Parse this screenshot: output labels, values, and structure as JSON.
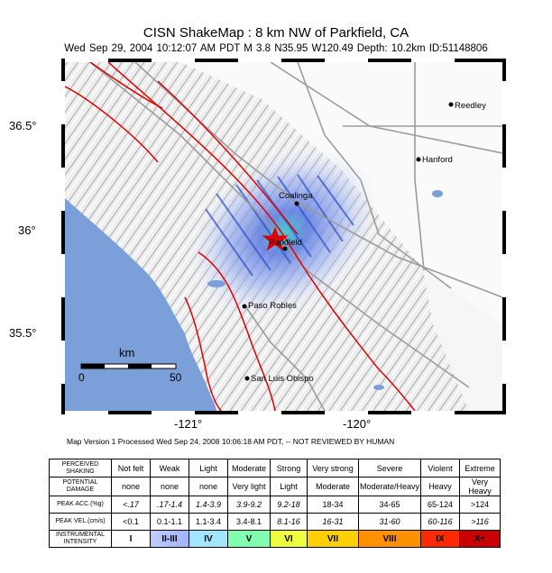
{
  "header": {
    "title": "CISN ShakeMap : 8 km NW of  Parkfield, CA",
    "subtitle": "Wed Sep 29, 2004 10:12:07 AM PDT   M 3.8   N35.95 W120.49   Depth: 10.2km   ID:51148806"
  },
  "map": {
    "lat_labels": [
      "36.5°",
      "36°",
      "35.5°"
    ],
    "lon_labels": [
      "-121°",
      "-120°"
    ],
    "cities": [
      {
        "name": "Reedley"
      },
      {
        "name": "Hanford"
      },
      {
        "name": "Coalinga"
      },
      {
        "name": "Parkfield"
      },
      {
        "name": "Paso Robles"
      },
      {
        "name": "San Luis Obispo"
      }
    ],
    "scale": {
      "unit": "km",
      "start": "0",
      "end": "50"
    },
    "colors": {
      "ocean": "#7b9fd9",
      "fault": "#e00000",
      "epicenter": "#e00000",
      "shaking": "#2a4fc9"
    }
  },
  "footnote": "Map Version 1 Processed Wed Sep 24, 2008 10:06:18 AM PDT, -- NOT REVIEWED BY HUMAN",
  "legend": {
    "row_headers": {
      "shaking": "PERCEIVED SHAKING",
      "damage": "POTENTIAL DAMAGE",
      "acc": "PEAK ACC.(%g)",
      "vel": "PEAK VEL.(cm/s)",
      "intensity": "INSTRUMENTAL INTENSITY"
    },
    "shaking": [
      "Not felt",
      "Weak",
      "Light",
      "Moderate",
      "Strong",
      "Very strong",
      "Severe",
      "Violent",
      "Extreme"
    ],
    "damage": [
      "none",
      "none",
      "none",
      "Very light",
      "Light",
      "Moderate",
      "Moderate/Heavy",
      "Heavy",
      "Very Heavy"
    ],
    "acc": [
      "<.17",
      ".17-1.4",
      "1.4-3.9",
      "3.9-9.2",
      "9.2-18",
      "18-34",
      "34-65",
      "65-124",
      ">124"
    ],
    "vel": [
      "<0.1",
      "0.1-1.1",
      "1.1-3.4",
      "3.4-8.1",
      "8.1-16",
      "16-31",
      "31-60",
      "60-116",
      ">116"
    ],
    "intensity": [
      "I",
      "II-III",
      "IV",
      "V",
      "VI",
      "VII",
      "VIII",
      "IX",
      "X+"
    ],
    "intensity_colors": [
      "#ffffff",
      "#bfccff",
      "#a0e6ff",
      "#80ffff",
      "#7aff93",
      "#ffff00",
      "#ffc800",
      "#ff9100",
      "#ff0000",
      "#c80000"
    ]
  }
}
